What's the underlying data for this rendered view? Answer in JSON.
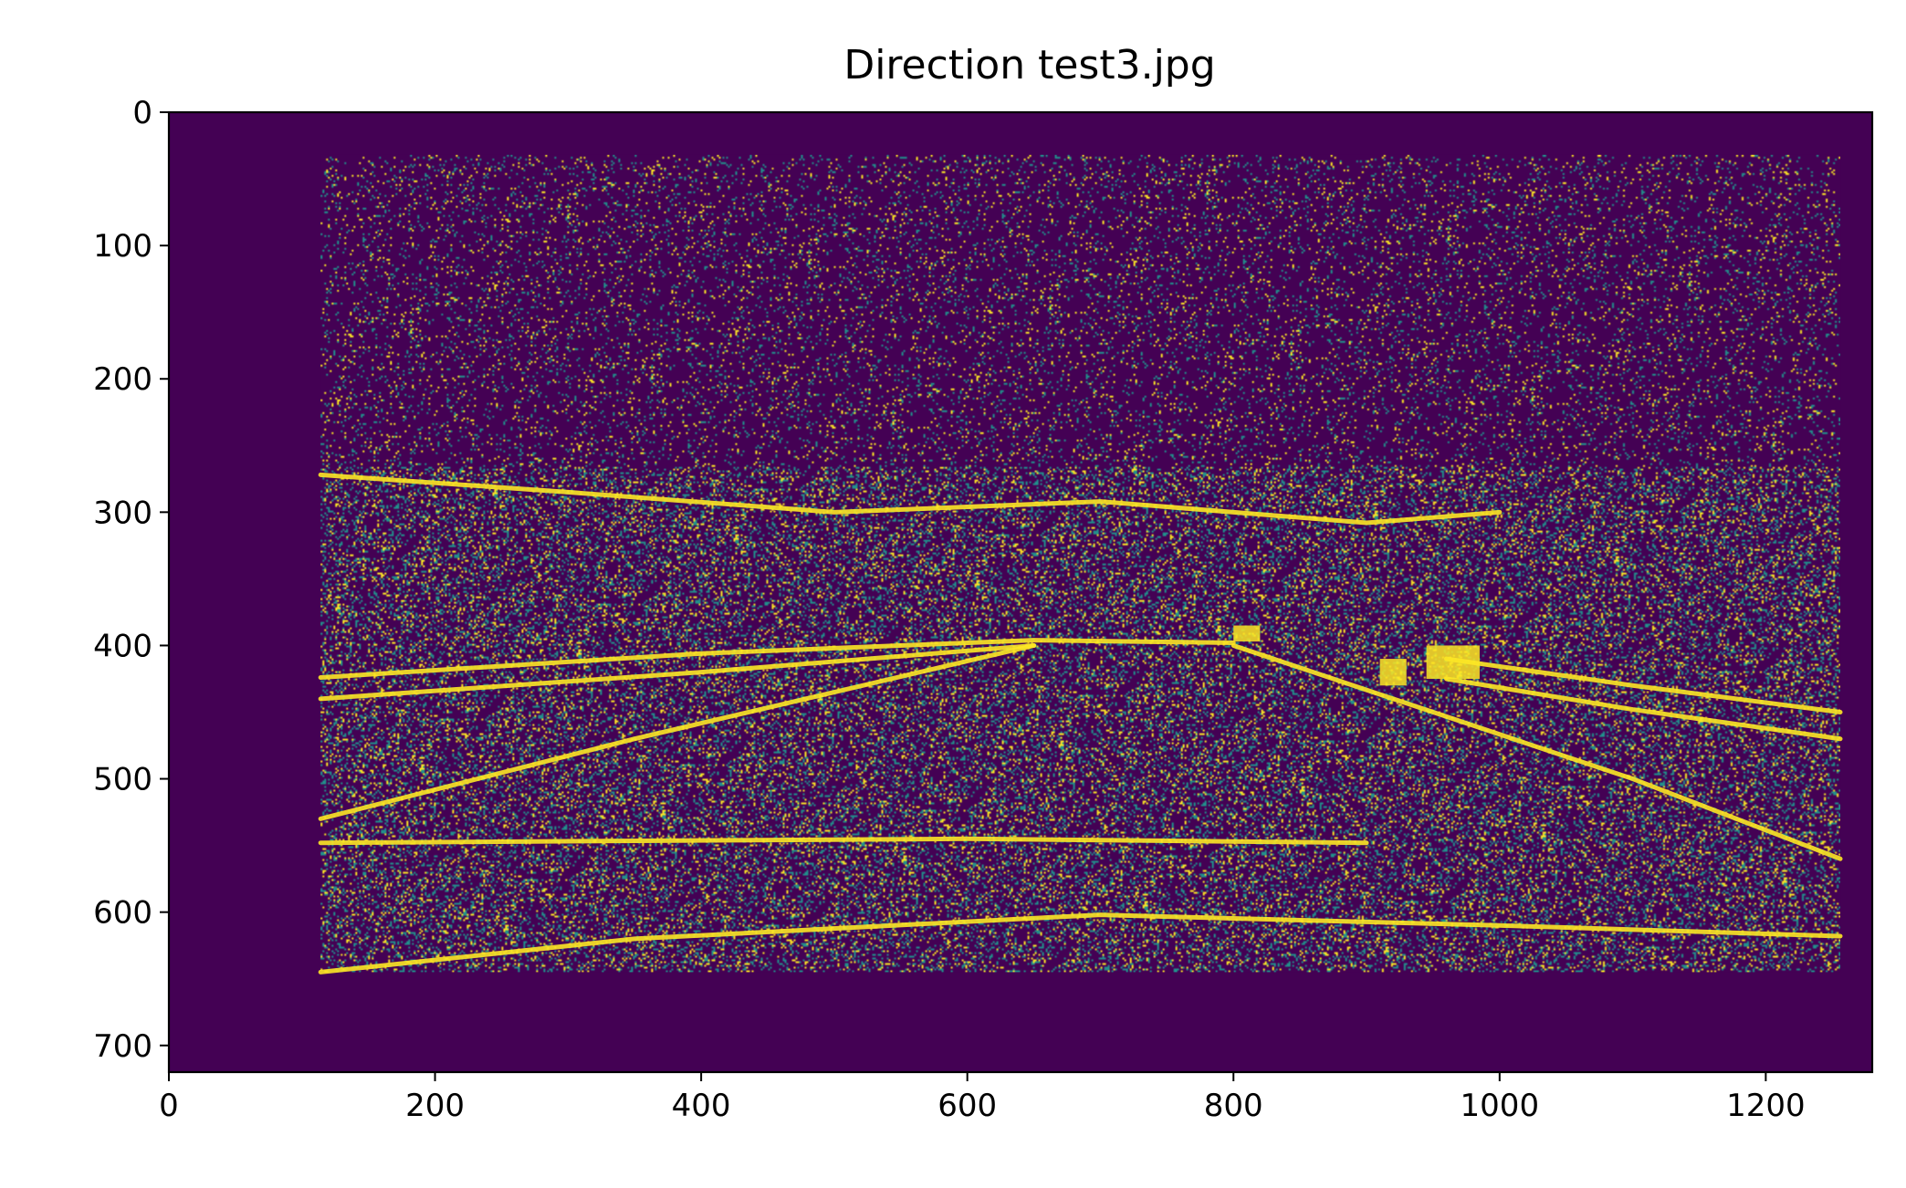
{
  "chart_data": {
    "type": "heatmap",
    "title": "Direction test3.jpg",
    "xlabel": "",
    "ylabel": "",
    "image_size": [
      1280,
      720
    ],
    "xlim": [
      0,
      1280
    ],
    "ylim": [
      720,
      0
    ],
    "x_ticks": [
      0,
      200,
      400,
      600,
      800,
      1000,
      1200
    ],
    "y_ticks": [
      0,
      100,
      200,
      300,
      400,
      500,
      600,
      700
    ],
    "x_tick_labels": [
      "0",
      "200",
      "400",
      "600",
      "800",
      "1000",
      "1200"
    ],
    "y_tick_labels": [
      "0",
      "100",
      "200",
      "300",
      "400",
      "500",
      "600",
      "700"
    ],
    "colormap": "viridis",
    "colors": {
      "low": "#440154",
      "mid": "#21918c",
      "high": "#fde725"
    },
    "active_region": {
      "x": [
        114,
        1256
      ],
      "y": [
        32,
        645
      ]
    },
    "features": [
      {
        "kind": "horizon",
        "points": [
          [
            114,
            272
          ],
          [
            300,
            285
          ],
          [
            500,
            300
          ],
          [
            700,
            292
          ],
          [
            900,
            308
          ],
          [
            1000,
            300
          ]
        ]
      },
      {
        "kind": "road-left-edge",
        "points": [
          [
            114,
            424
          ],
          [
            400,
            406
          ],
          [
            650,
            396
          ],
          [
            800,
            398
          ]
        ]
      },
      {
        "kind": "road-left-edge",
        "points": [
          [
            114,
            440
          ],
          [
            400,
            420
          ],
          [
            650,
            400
          ]
        ]
      },
      {
        "kind": "road-right-edge",
        "points": [
          [
            960,
            410
          ],
          [
            1100,
            430
          ],
          [
            1256,
            450
          ]
        ]
      },
      {
        "kind": "road-right-edge",
        "points": [
          [
            960,
            425
          ],
          [
            1100,
            448
          ],
          [
            1256,
            470
          ]
        ]
      },
      {
        "kind": "lane-diagonal",
        "points": [
          [
            114,
            530
          ],
          [
            350,
            470
          ],
          [
            650,
            400
          ]
        ]
      },
      {
        "kind": "lane-diagonal",
        "points": [
          [
            800,
            400
          ],
          [
            1100,
            500
          ],
          [
            1256,
            560
          ]
        ]
      },
      {
        "kind": "hood-curve",
        "points": [
          [
            114,
            645
          ],
          [
            350,
            620
          ],
          [
            700,
            602
          ],
          [
            1000,
            610
          ],
          [
            1256,
            618
          ]
        ]
      },
      {
        "kind": "hood-line",
        "points": [
          [
            114,
            548
          ],
          [
            600,
            545
          ],
          [
            900,
            548
          ]
        ]
      }
    ],
    "blobs": [
      {
        "x": 945,
        "y": 400,
        "w": 40,
        "h": 25
      },
      {
        "x": 910,
        "y": 410,
        "w": 20,
        "h": 20
      },
      {
        "x": 800,
        "y": 385,
        "w": 20,
        "h": 12
      }
    ]
  }
}
